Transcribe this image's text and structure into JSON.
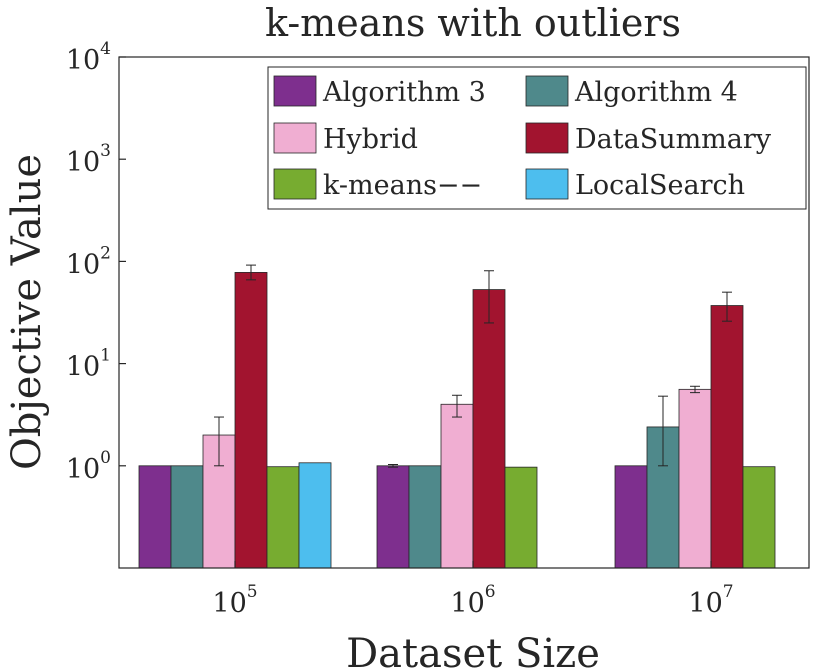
{
  "chart_data": {
    "type": "bar",
    "title": "k-means with outliers",
    "xlabel": "Dataset Size",
    "ylabel": "Objective Value",
    "yscale": "log",
    "ylim": [
      0.1,
      10000
    ],
    "yticks": [
      {
        "base": "10",
        "exp": "0",
        "value": 1
      },
      {
        "base": "10",
        "exp": "1",
        "value": 10
      },
      {
        "base": "10",
        "exp": "2",
        "value": 100
      },
      {
        "base": "10",
        "exp": "3",
        "value": 1000
      },
      {
        "base": "10",
        "exp": "4",
        "value": 10000
      }
    ],
    "categories": [
      {
        "base": "10",
        "exp": "5"
      },
      {
        "base": "10",
        "exp": "6"
      },
      {
        "base": "10",
        "exp": "7"
      }
    ],
    "legend_position": "top-right",
    "series": [
      {
        "name": "Algorithm 3",
        "color": "#7e2f8e",
        "values": [
          1.0,
          1.0,
          1.0
        ],
        "err_low": [
          null,
          0.97,
          null
        ],
        "err_high": [
          null,
          1.03,
          null
        ]
      },
      {
        "name": "Algorithm 4",
        "color": "#4f898b",
        "values": [
          1.0,
          1.0,
          2.4
        ],
        "err_low": [
          null,
          null,
          1.0
        ],
        "err_high": [
          null,
          null,
          4.8
        ]
      },
      {
        "name": "Hybrid",
        "color": "#f0aed2",
        "values": [
          2.0,
          4.0,
          5.6
        ],
        "err_low": [
          1.0,
          3.0,
          5.2
        ],
        "err_high": [
          3.0,
          4.9,
          6.0
        ]
      },
      {
        "name": "DataSummary",
        "color": "#a2142f",
        "values": [
          78,
          53,
          37
        ],
        "err_low": [
          66,
          25,
          26
        ],
        "err_high": [
          92,
          81,
          50
        ]
      },
      {
        "name": "k-means−−",
        "color": "#77ac30",
        "values": [
          0.98,
          0.97,
          0.98
        ],
        "err_low": [
          null,
          null,
          null
        ],
        "err_high": [
          null,
          null,
          null
        ]
      },
      {
        "name": "LocalSearch",
        "color": "#4dbeee",
        "values": [
          1.07,
          null,
          null
        ],
        "err_low": [
          null,
          null,
          null
        ],
        "err_high": [
          null,
          null,
          null
        ]
      }
    ]
  }
}
